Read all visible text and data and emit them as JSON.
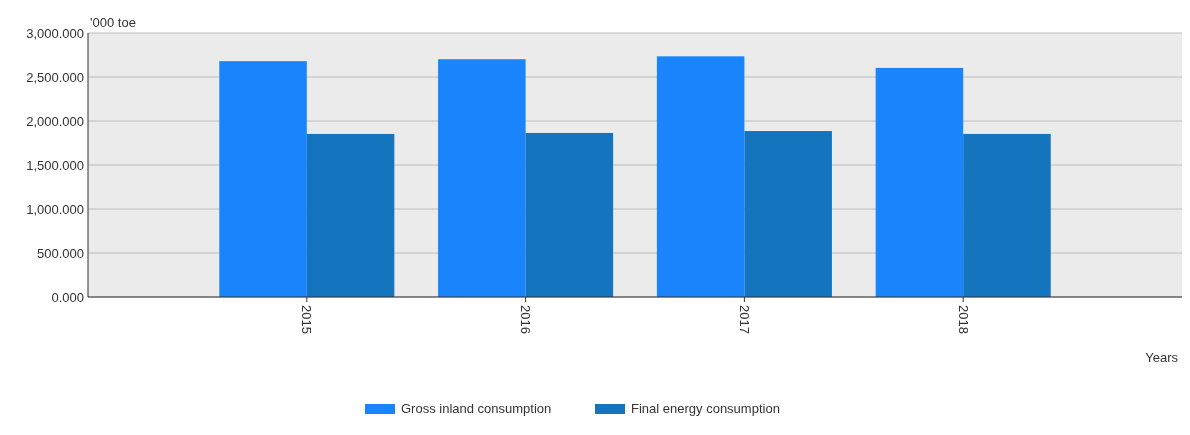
{
  "chart_data": {
    "type": "bar",
    "ylabel": "'000 toe",
    "xlabel": "Years",
    "categories": [
      "2015",
      "2016",
      "2017",
      "2018"
    ],
    "series": [
      {
        "name": "Gross inland consumption",
        "color": "#1a84fc",
        "values": [
          2680,
          2702,
          2735,
          2603
        ]
      },
      {
        "name": "Final energy consumption",
        "color": "#1474bd",
        "values": [
          1853,
          1864,
          1886,
          1853
        ]
      }
    ],
    "ylim": [
      0,
      3000
    ],
    "yticks": [
      {
        "value": 0,
        "label": "0.000"
      },
      {
        "value": 500,
        "label": "500.000"
      },
      {
        "value": 1000,
        "label": "1,000.000"
      },
      {
        "value": 1500,
        "label": "1,500.000"
      },
      {
        "value": 2000,
        "label": "2,000.000"
      },
      {
        "value": 2500,
        "label": "2,500.000"
      },
      {
        "value": 3000,
        "label": "3,000.000"
      }
    ],
    "grid": "y",
    "legend": "bottom"
  }
}
